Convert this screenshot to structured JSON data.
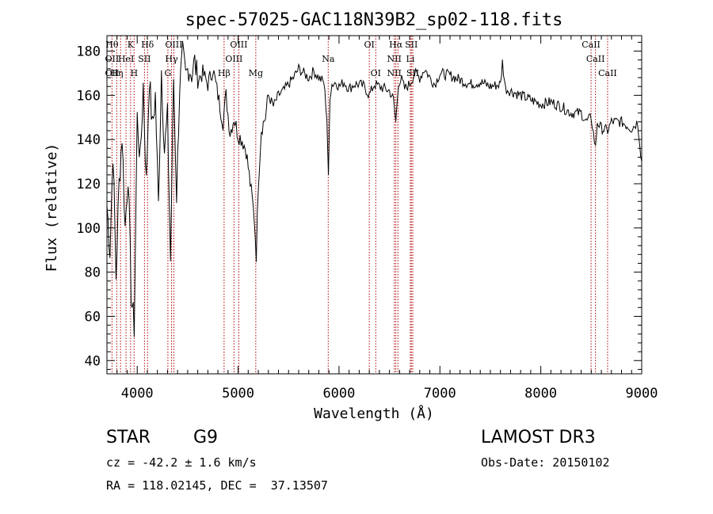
{
  "chart_data": {
    "type": "line",
    "title": "spec-57025-GAC118N39B2_sp02-118.fits",
    "xlabel": "Wavelength (Å)",
    "ylabel": "Flux (relative)",
    "xlim": [
      3700,
      9000
    ],
    "ylim": [
      34,
      187
    ],
    "xticks": [
      4000,
      5000,
      6000,
      7000,
      8000,
      9000
    ],
    "xtick_labels": [
      "4000",
      "5000",
      "6000",
      "7000",
      "8000",
      "9000"
    ],
    "yticks": [
      40,
      60,
      80,
      100,
      120,
      140,
      160,
      180
    ],
    "ytick_labels": [
      "40",
      "60",
      "80",
      "100",
      "120",
      "140",
      "160",
      "180"
    ],
    "grid": false,
    "series": [
      {
        "name": "flux",
        "x": [
          3700,
          3730,
          3760,
          3790,
          3820,
          3850,
          3880,
          3910,
          3940,
          3970,
          4000,
          4030,
          4060,
          4090,
          4120,
          4150,
          4180,
          4210,
          4240,
          4270,
          4300,
          4330,
          4360,
          4390,
          4420,
          4450,
          4480,
          4510,
          4540,
          4570,
          4600,
          4650,
          4700,
          4750,
          4800,
          4850,
          4880,
          4920,
          4960,
          5000,
          5040,
          5080,
          5120,
          5160,
          5180,
          5200,
          5230,
          5270,
          5300,
          5350,
          5400,
          5450,
          5500,
          5550,
          5600,
          5650,
          5700,
          5750,
          5800,
          5850,
          5880,
          5895,
          5910,
          5930,
          5970,
          6000,
          6050,
          6100,
          6150,
          6200,
          6250,
          6300,
          6350,
          6400,
          6450,
          6500,
          6540,
          6563,
          6590,
          6620,
          6650,
          6700,
          6750,
          6800,
          6850,
          6900,
          6950,
          7000,
          7100,
          7200,
          7300,
          7400,
          7500,
          7600,
          7620,
          7650,
          7700,
          7800,
          7900,
          8000,
          8100,
          8200,
          8300,
          8400,
          8450,
          8500,
          8542,
          8560,
          8600,
          8662,
          8700,
          8800,
          8900,
          8960,
          9000
        ],
        "values": [
          110,
          90,
          135,
          78,
          120,
          142,
          100,
          125,
          70,
          55,
          150,
          130,
          165,
          120,
          168,
          145,
          160,
          110,
          172,
          135,
          150,
          85,
          168,
          115,
          163,
          178,
          168,
          173,
          170,
          175,
          167,
          170,
          165,
          172,
          160,
          148,
          160,
          143,
          150,
          142,
          140,
          135,
          120,
          105,
          88,
          120,
          145,
          150,
          160,
          155,
          160,
          162,
          165,
          168,
          172,
          170,
          168,
          171,
          168,
          166,
          150,
          122,
          160,
          165,
          166,
          164,
          166,
          163,
          165,
          165,
          164,
          160,
          165,
          164,
          163,
          162,
          158,
          148,
          166,
          167,
          163,
          165,
          170,
          168,
          172,
          168,
          165,
          170,
          169,
          167,
          165,
          166,
          164,
          165,
          175,
          163,
          162,
          160,
          158,
          156,
          157,
          155,
          152,
          152,
          148,
          150,
          136,
          148,
          145,
          144,
          148,
          148,
          145,
          148,
          130
        ]
      }
    ],
    "lines": [
      {
        "x": 3750,
        "labels": [
          {
            "text": "Hθ",
            "row": 1
          },
          {
            "text": "OII",
            "row": 2
          },
          {
            "text": "OII",
            "row": 3
          }
        ]
      },
      {
        "x": 3797,
        "labels": [
          {
            "text": "Hη",
            "row": 3
          }
        ]
      },
      {
        "x": 3835,
        "labels": []
      },
      {
        "x": 3889,
        "labels": [
          {
            "text": "HeI",
            "row": 2
          }
        ]
      },
      {
        "x": 3934,
        "labels": [
          {
            "text": "K",
            "row": 1
          }
        ]
      },
      {
        "x": 3969,
        "labels": [
          {
            "text": "H",
            "row": 3
          }
        ]
      },
      {
        "x": 4072,
        "labels": [
          {
            "text": "SII",
            "row": 2
          }
        ]
      },
      {
        "x": 4102,
        "labels": [
          {
            "text": "Hδ",
            "row": 1
          }
        ]
      },
      {
        "x": 4304,
        "labels": [
          {
            "text": "G",
            "row": 3
          }
        ]
      },
      {
        "x": 4340,
        "labels": [
          {
            "text": "Hγ",
            "row": 2
          }
        ]
      },
      {
        "x": 4363,
        "labels": [
          {
            "text": "OIII",
            "row": 1
          }
        ]
      },
      {
        "x": 4861,
        "labels": [
          {
            "text": "Hβ",
            "row": 3
          }
        ]
      },
      {
        "x": 4959,
        "labels": [
          {
            "text": "OIII",
            "row": 2
          }
        ]
      },
      {
        "x": 5007,
        "labels": [
          {
            "text": "OIII",
            "row": 1
          }
        ]
      },
      {
        "x": 5175,
        "labels": [
          {
            "text": "Mg",
            "row": 3
          }
        ]
      },
      {
        "x": 5893,
        "labels": [
          {
            "text": "Na",
            "row": 2
          }
        ]
      },
      {
        "x": 6300,
        "labels": [
          {
            "text": "OI",
            "row": 1
          }
        ]
      },
      {
        "x": 6364,
        "labels": [
          {
            "text": "OI",
            "row": 3
          }
        ]
      },
      {
        "x": 6548,
        "labels": [
          {
            "text": "NII",
            "row": 2
          },
          {
            "text": "NII",
            "row": 3
          }
        ]
      },
      {
        "x": 6563,
        "labels": [
          {
            "text": "Hα",
            "row": 1
          }
        ]
      },
      {
        "x": 6584,
        "labels": []
      },
      {
        "x": 6707,
        "labels": [
          {
            "text": "Li",
            "row": 2
          }
        ]
      },
      {
        "x": 6717,
        "labels": [
          {
            "text": "SII",
            "row": 1
          }
        ]
      },
      {
        "x": 6731,
        "labels": [
          {
            "text": "SII",
            "row": 3
          }
        ]
      },
      {
        "x": 8498,
        "labels": [
          {
            "text": "CaII",
            "row": 1
          }
        ]
      },
      {
        "x": 8542,
        "labels": [
          {
            "text": "CaII",
            "row": 2
          }
        ]
      },
      {
        "x": 8662,
        "labels": [
          {
            "text": "CaII",
            "row": 3
          }
        ]
      }
    ]
  },
  "info": {
    "class_label": "STAR",
    "subclass_label": "G9",
    "cz_line": "cz = -42.2 ± 1.6 km/s",
    "radec_line": "RA = 118.02145, DEC =  37.13507",
    "survey_label": "LAMOST DR3",
    "obs_date_line": "Obs-Date: 20150102"
  },
  "colors": {
    "line_color": "#b00000",
    "axis_color": "#000000",
    "background": "#ffffff"
  }
}
